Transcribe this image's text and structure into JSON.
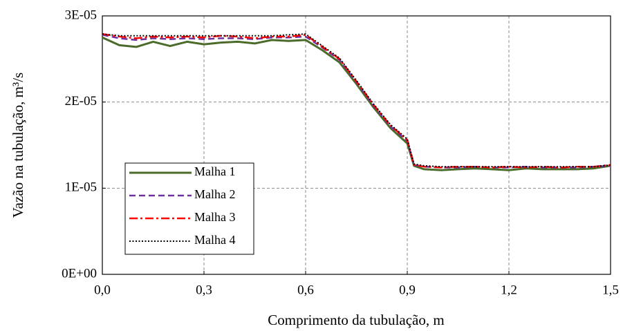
{
  "chart_data": {
    "type": "line",
    "xlabel": "Comprimento da tubulação, m",
    "ylabel": "Vazão na tubulação, m³/s",
    "x": [
      0,
      0.05,
      0.1,
      0.15,
      0.2,
      0.25,
      0.3,
      0.35,
      0.4,
      0.45,
      0.5,
      0.55,
      0.6,
      0.65,
      0.7,
      0.75,
      0.8,
      0.85,
      0.9,
      0.92,
      0.95,
      1.0,
      1.05,
      1.1,
      1.15,
      1.2,
      1.25,
      1.3,
      1.35,
      1.4,
      1.45,
      1.5
    ],
    "series": [
      {
        "name": "Malha 1",
        "color": "#4a6b2a",
        "dash": "solid",
        "values": [
          2.75e-05,
          2.66e-05,
          2.64e-05,
          2.7e-05,
          2.65e-05,
          2.7e-05,
          2.67e-05,
          2.69e-05,
          2.7e-05,
          2.68e-05,
          2.72e-05,
          2.71e-05,
          2.72e-05,
          2.6e-05,
          2.46e-05,
          2.21e-05,
          1.94e-05,
          1.7e-05,
          1.52e-05,
          1.26e-05,
          1.22e-05,
          1.21e-05,
          1.22e-05,
          1.23e-05,
          1.22e-05,
          1.21e-05,
          1.23e-05,
          1.22e-05,
          1.22e-05,
          1.22e-05,
          1.23e-05,
          1.26e-05
        ]
      },
      {
        "name": "Malha 2",
        "color": "#7030a0",
        "dash": "dashed",
        "values": [
          2.78e-05,
          2.74e-05,
          2.72e-05,
          2.74e-05,
          2.73e-05,
          2.74e-05,
          2.73e-05,
          2.74e-05,
          2.74e-05,
          2.73e-05,
          2.75e-05,
          2.75e-05,
          2.76e-05,
          2.63e-05,
          2.49e-05,
          2.23e-05,
          1.96e-05,
          1.72e-05,
          1.55e-05,
          1.27e-05,
          1.25e-05,
          1.24e-05,
          1.24e-05,
          1.25e-05,
          1.24e-05,
          1.24e-05,
          1.25e-05,
          1.24e-05,
          1.24e-05,
          1.24e-05,
          1.25e-05,
          1.26e-05
        ]
      },
      {
        "name": "Malha 3",
        "color": "#ff0000",
        "dash": "dashdot",
        "values": [
          2.79e-05,
          2.76e-05,
          2.74e-05,
          2.76e-05,
          2.75e-05,
          2.76e-05,
          2.75e-05,
          2.77e-05,
          2.76e-05,
          2.74e-05,
          2.76e-05,
          2.76e-05,
          2.78e-05,
          2.64e-05,
          2.5e-05,
          2.24e-05,
          1.97e-05,
          1.73e-05,
          1.56e-05,
          1.27e-05,
          1.25e-05,
          1.24e-05,
          1.25e-05,
          1.25e-05,
          1.24e-05,
          1.25e-05,
          1.24e-05,
          1.25e-05,
          1.24e-05,
          1.25e-05,
          1.25e-05,
          1.27e-05
        ]
      },
      {
        "name": "Malha 4",
        "color": "#000000",
        "dash": "dotted",
        "values": [
          2.79e-05,
          2.77e-05,
          2.77e-05,
          2.77e-05,
          2.77e-05,
          2.77e-05,
          2.77e-05,
          2.77e-05,
          2.77e-05,
          2.77e-05,
          2.77e-05,
          2.78e-05,
          2.79e-05,
          2.65e-05,
          2.51e-05,
          2.25e-05,
          1.98e-05,
          1.74e-05,
          1.57e-05,
          1.28e-05,
          1.26e-05,
          1.25e-05,
          1.25e-05,
          1.25e-05,
          1.25e-05,
          1.25e-05,
          1.25e-05,
          1.25e-05,
          1.25e-05,
          1.25e-05,
          1.25e-05,
          1.27e-05
        ]
      }
    ],
    "xlim": [
      0,
      1.5
    ],
    "xticks": [
      {
        "value": 0,
        "label": "0,0"
      },
      {
        "value": 0.3,
        "label": "0,3"
      },
      {
        "value": 0.6,
        "label": "0,6"
      },
      {
        "value": 0.9,
        "label": "0,9"
      },
      {
        "value": 1.2,
        "label": "1,2"
      },
      {
        "value": 1.5,
        "label": "1,5"
      }
    ],
    "ylim": [
      0,
      3e-05
    ],
    "yticks": [
      {
        "value": 0,
        "label": "0E+00"
      },
      {
        "value": 1e-05,
        "label": "1E-05"
      },
      {
        "value": 2e-05,
        "label": "2E-05"
      },
      {
        "value": 3e-05,
        "label": "3E-05"
      }
    ],
    "grid": true,
    "legend": "lower left"
  }
}
